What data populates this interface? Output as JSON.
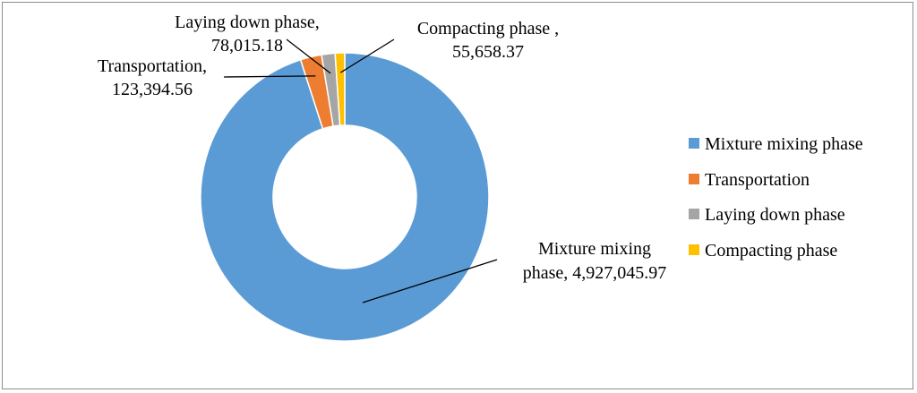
{
  "chart_data": {
    "type": "pie",
    "variant": "doughnut",
    "title": "",
    "series": [
      {
        "categories": [
          "Mixture mixing phase",
          "Transportation",
          "Laying down phase",
          "Compacting phase"
        ],
        "values": [
          4927045.97,
          123394.56,
          78015.18,
          55658.37
        ]
      }
    ],
    "colors": [
      "#5b9bd5",
      "#ed7d31",
      "#a5a5a5",
      "#ffc000"
    ],
    "legend": {
      "position": "right",
      "entries": [
        "Mixture mixing phase",
        "Transportation",
        "Laying down phase",
        "Compacting phase"
      ]
    },
    "data_labels": [
      {
        "line1": "Mixture mixing",
        "line2": "phase, 4,927,045.97"
      },
      {
        "line1": "Transportation,",
        "line2": "123,394.56"
      },
      {
        "line1": "Laying down phase,",
        "line2": "78,015.18"
      },
      {
        "line1": "Compacting phase ,",
        "line2": "55,658.37"
      }
    ]
  }
}
